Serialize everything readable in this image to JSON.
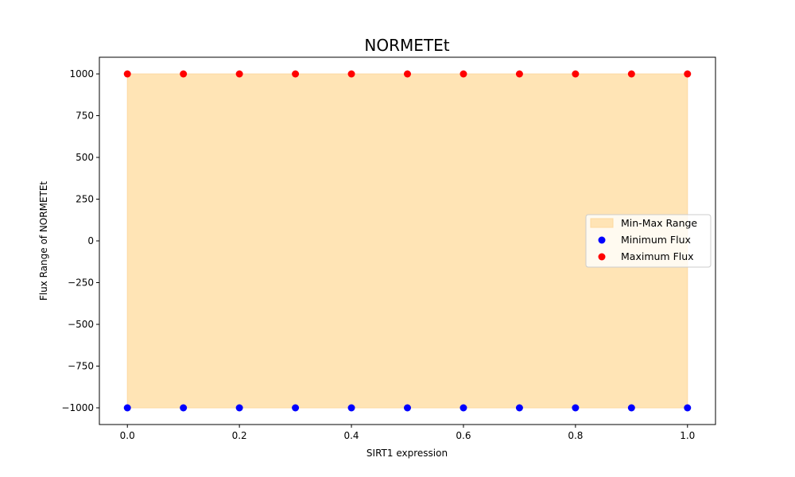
{
  "chart_data": {
    "type": "scatter",
    "title": "NORMETEt",
    "xlabel": "SIRT1 expression",
    "ylabel": "Flux Range of NORMETEt",
    "xlim": [
      -0.05,
      1.05
    ],
    "ylim": [
      -1100,
      1100
    ],
    "x_ticks": [
      0.0,
      0.2,
      0.4,
      0.6,
      0.8,
      1.0
    ],
    "x_tick_labels": [
      "0.0",
      "0.2",
      "0.4",
      "0.6",
      "0.8",
      "1.0"
    ],
    "y_ticks": [
      -1000,
      -750,
      -500,
      -250,
      0,
      250,
      500,
      750,
      1000
    ],
    "y_tick_labels": [
      "−1000",
      "−750",
      "−500",
      "−250",
      "0",
      "250",
      "500",
      "750",
      "1000"
    ],
    "x": [
      0.0,
      0.1,
      0.2,
      0.3,
      0.4,
      0.5,
      0.6,
      0.7,
      0.8,
      0.9,
      1.0
    ],
    "range_fill": {
      "name": "Min-Max Range",
      "color": "#FFE4B5",
      "edge_color": "#FDD9A0",
      "lower": [
        -1000,
        -1000,
        -1000,
        -1000,
        -1000,
        -1000,
        -1000,
        -1000,
        -1000,
        -1000,
        -1000
      ],
      "upper": [
        1000,
        1000,
        1000,
        1000,
        1000,
        1000,
        1000,
        1000,
        1000,
        1000,
        1000
      ]
    },
    "series": [
      {
        "name": "Minimum Flux",
        "color": "#0000FF",
        "values": [
          -1000,
          -1000,
          -1000,
          -1000,
          -1000,
          -1000,
          -1000,
          -1000,
          -1000,
          -1000,
          -1000
        ]
      },
      {
        "name": "Maximum Flux",
        "color": "#FF0000",
        "values": [
          1000,
          1000,
          1000,
          1000,
          1000,
          1000,
          1000,
          1000,
          1000,
          1000,
          1000
        ]
      }
    ],
    "grid": false,
    "legend_position": "center-right"
  }
}
